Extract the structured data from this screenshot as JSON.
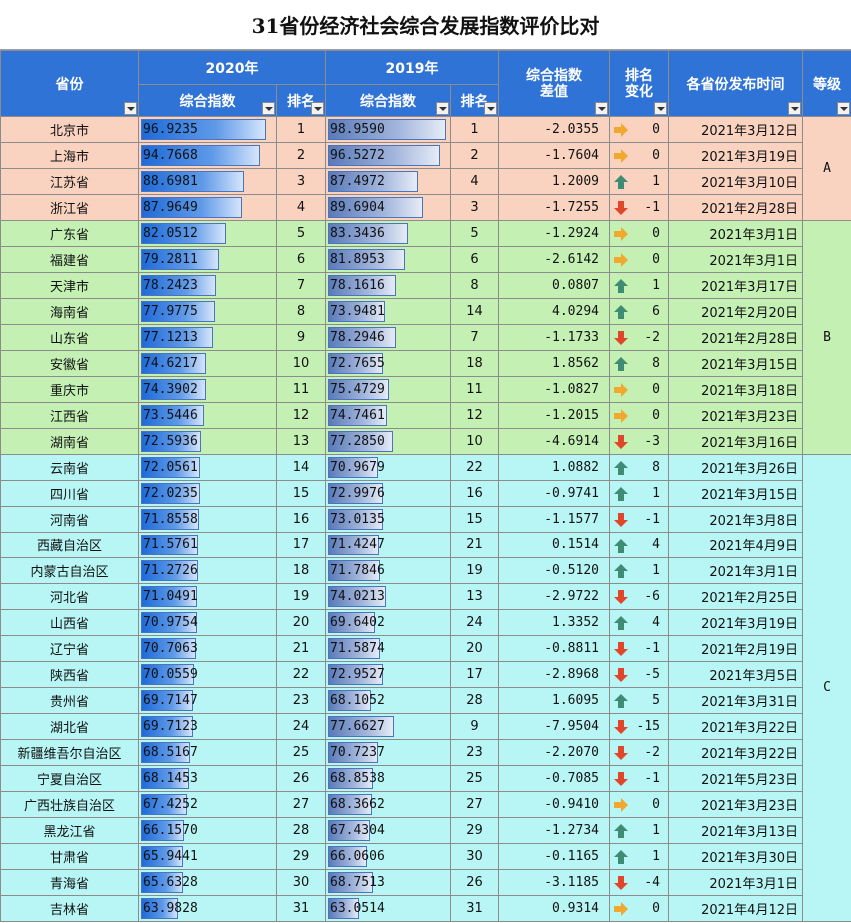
{
  "title": "31省份经济社会综合发展指数评价比对",
  "headers": {
    "province": "省份",
    "y2020": "2020年",
    "y2019": "2019年",
    "index": "综合指数",
    "rank": "排名",
    "diff_l1": "综合指数",
    "diff_l2": "差值",
    "change_l1": "排名",
    "change_l2": "变化",
    "release": "各省份发布时间",
    "grade": "等级"
  },
  "colors": {
    "header_bg": "#2f73d6",
    "grade_A": "#f9d2c0",
    "grade_B": "#c4f0b4",
    "grade_C": "#b8f6f6",
    "arrow_up": "#3f8c74",
    "arrow_down": "#e0462a",
    "arrow_flat": "#f0a92e"
  },
  "bar_scale": {
    "min": 50,
    "max": 100
  },
  "grades": [
    {
      "label": "A",
      "rows": 4
    },
    {
      "label": "B",
      "rows": 9
    },
    {
      "label": "C",
      "rows": 18
    }
  ],
  "rows": [
    {
      "province": "北京市",
      "idx2020": "96.9235",
      "rank2020": "1",
      "idx2019": "98.9590",
      "rank2019": "1",
      "diff": "-2.0355",
      "trend": "flat",
      "change": "0",
      "date": "2021年3月12日",
      "grade": "A"
    },
    {
      "province": "上海市",
      "idx2020": "94.7668",
      "rank2020": "2",
      "idx2019": "96.5272",
      "rank2019": "2",
      "diff": "-1.7604",
      "trend": "flat",
      "change": "0",
      "date": "2021年3月19日",
      "grade": "A"
    },
    {
      "province": "江苏省",
      "idx2020": "88.6981",
      "rank2020": "3",
      "idx2019": "87.4972",
      "rank2019": "4",
      "diff": "1.2009",
      "trend": "up",
      "change": "1",
      "date": "2021年3月10日",
      "grade": "A"
    },
    {
      "province": "浙江省",
      "idx2020": "87.9649",
      "rank2020": "4",
      "idx2019": "89.6904",
      "rank2019": "3",
      "diff": "-1.7255",
      "trend": "down",
      "change": "-1",
      "date": "2021年2月28日",
      "grade": "A"
    },
    {
      "province": "广东省",
      "idx2020": "82.0512",
      "rank2020": "5",
      "idx2019": "83.3436",
      "rank2019": "5",
      "diff": "-1.2924",
      "trend": "flat",
      "change": "0",
      "date": "2021年3月1日",
      "grade": "B"
    },
    {
      "province": "福建省",
      "idx2020": "79.2811",
      "rank2020": "6",
      "idx2019": "81.8953",
      "rank2019": "6",
      "diff": "-2.6142",
      "trend": "flat",
      "change": "0",
      "date": "2021年3月1日",
      "grade": "B"
    },
    {
      "province": "天津市",
      "idx2020": "78.2423",
      "rank2020": "7",
      "idx2019": "78.1616",
      "rank2019": "8",
      "diff": "0.0807",
      "trend": "up",
      "change": "1",
      "date": "2021年3月17日",
      "grade": "B"
    },
    {
      "province": "海南省",
      "idx2020": "77.9775",
      "rank2020": "8",
      "idx2019": "73.9481",
      "rank2019": "14",
      "diff": "4.0294",
      "trend": "up",
      "change": "6",
      "date": "2021年2月20日",
      "grade": "B"
    },
    {
      "province": "山东省",
      "idx2020": "77.1213",
      "rank2020": "9",
      "idx2019": "78.2946",
      "rank2019": "7",
      "diff": "-1.1733",
      "trend": "down",
      "change": "-2",
      "date": "2021年2月28日",
      "grade": "B"
    },
    {
      "province": "安徽省",
      "idx2020": "74.6217",
      "rank2020": "10",
      "idx2019": "72.7655",
      "rank2019": "18",
      "diff": "1.8562",
      "trend": "up",
      "change": "8",
      "date": "2021年3月15日",
      "grade": "B"
    },
    {
      "province": "重庆市",
      "idx2020": "74.3902",
      "rank2020": "11",
      "idx2019": "75.4729",
      "rank2019": "11",
      "diff": "-1.0827",
      "trend": "flat",
      "change": "0",
      "date": "2021年3月18日",
      "grade": "B"
    },
    {
      "province": "江西省",
      "idx2020": "73.5446",
      "rank2020": "12",
      "idx2019": "74.7461",
      "rank2019": "12",
      "diff": "-1.2015",
      "trend": "flat",
      "change": "0",
      "date": "2021年3月23日",
      "grade": "B"
    },
    {
      "province": "湖南省",
      "idx2020": "72.5936",
      "rank2020": "13",
      "idx2019": "77.2850",
      "rank2019": "10",
      "diff": "-4.6914",
      "trend": "down",
      "change": "-3",
      "date": "2021年3月16日",
      "grade": "B"
    },
    {
      "province": "云南省",
      "idx2020": "72.0561",
      "rank2020": "14",
      "idx2019": "70.9679",
      "rank2019": "22",
      "diff": "1.0882",
      "trend": "up",
      "change": "8",
      "date": "2021年3月26日",
      "grade": "C"
    },
    {
      "province": "四川省",
      "idx2020": "72.0235",
      "rank2020": "15",
      "idx2019": "72.9976",
      "rank2019": "16",
      "diff": "-0.9741",
      "trend": "up",
      "change": "1",
      "date": "2021年3月15日",
      "grade": "C"
    },
    {
      "province": "河南省",
      "idx2020": "71.8558",
      "rank2020": "16",
      "idx2019": "73.0135",
      "rank2019": "15",
      "diff": "-1.1577",
      "trend": "down",
      "change": "-1",
      "date": "2021年3月8日",
      "grade": "C"
    },
    {
      "province": "西藏自治区",
      "idx2020": "71.5761",
      "rank2020": "17",
      "idx2019": "71.4247",
      "rank2019": "21",
      "diff": "0.1514",
      "trend": "up",
      "change": "4",
      "date": "2021年4月9日",
      "grade": "C"
    },
    {
      "province": "内蒙古自治区",
      "idx2020": "71.2726",
      "rank2020": "18",
      "idx2019": "71.7846",
      "rank2019": "19",
      "diff": "-0.5120",
      "trend": "up",
      "change": "1",
      "date": "2021年3月1日",
      "grade": "C"
    },
    {
      "province": "河北省",
      "idx2020": "71.0491",
      "rank2020": "19",
      "idx2019": "74.0213",
      "rank2019": "13",
      "diff": "-2.9722",
      "trend": "down",
      "change": "-6",
      "date": "2021年2月25日",
      "grade": "C"
    },
    {
      "province": "山西省",
      "idx2020": "70.9754",
      "rank2020": "20",
      "idx2019": "69.6402",
      "rank2019": "24",
      "diff": "1.3352",
      "trend": "up",
      "change": "4",
      "date": "2021年3月19日",
      "grade": "C"
    },
    {
      "province": "辽宁省",
      "idx2020": "70.7063",
      "rank2020": "21",
      "idx2019": "71.5874",
      "rank2019": "20",
      "diff": "-0.8811",
      "trend": "down",
      "change": "-1",
      "date": "2021年2月19日",
      "grade": "C"
    },
    {
      "province": "陕西省",
      "idx2020": "70.0559",
      "rank2020": "22",
      "idx2019": "72.9527",
      "rank2019": "17",
      "diff": "-2.8968",
      "trend": "down",
      "change": "-5",
      "date": "2021年3月5日",
      "grade": "C"
    },
    {
      "province": "贵州省",
      "idx2020": "69.7147",
      "rank2020": "23",
      "idx2019": "68.1052",
      "rank2019": "28",
      "diff": "1.6095",
      "trend": "up",
      "change": "5",
      "date": "2021年3月31日",
      "grade": "C"
    },
    {
      "province": "湖北省",
      "idx2020": "69.7123",
      "rank2020": "24",
      "idx2019": "77.6627",
      "rank2019": "9",
      "diff": "-7.9504",
      "trend": "down",
      "change": "-15",
      "date": "2021年3月22日",
      "grade": "C"
    },
    {
      "province": "新疆维吾尔自治区",
      "idx2020": "68.5167",
      "rank2020": "25",
      "idx2019": "70.7237",
      "rank2019": "23",
      "diff": "-2.2070",
      "trend": "down",
      "change": "-2",
      "date": "2021年3月22日",
      "grade": "C"
    },
    {
      "province": "宁夏自治区",
      "idx2020": "68.1453",
      "rank2020": "26",
      "idx2019": "68.8538",
      "rank2019": "25",
      "diff": "-0.7085",
      "trend": "down",
      "change": "-1",
      "date": "2021年5月23日",
      "grade": "C"
    },
    {
      "province": "广西壮族自治区",
      "idx2020": "67.4252",
      "rank2020": "27",
      "idx2019": "68.3662",
      "rank2019": "27",
      "diff": "-0.9410",
      "trend": "flat",
      "change": "0",
      "date": "2021年3月23日",
      "grade": "C"
    },
    {
      "province": "黑龙江省",
      "idx2020": "66.1570",
      "rank2020": "28",
      "idx2019": "67.4304",
      "rank2019": "29",
      "diff": "-1.2734",
      "trend": "up",
      "change": "1",
      "date": "2021年3月13日",
      "grade": "C"
    },
    {
      "province": "甘肃省",
      "idx2020": "65.9441",
      "rank2020": "29",
      "idx2019": "66.0606",
      "rank2019": "30",
      "diff": "-0.1165",
      "trend": "up",
      "change": "1",
      "date": "2021年3月30日",
      "grade": "C"
    },
    {
      "province": "青海省",
      "idx2020": "65.6328",
      "rank2020": "30",
      "idx2019": "68.7513",
      "rank2019": "26",
      "diff": "-3.1185",
      "trend": "down",
      "change": "-4",
      "date": "2021年3月1日",
      "grade": "C"
    },
    {
      "province": "吉林省",
      "idx2020": "63.9828",
      "rank2020": "31",
      "idx2019": "63.0514",
      "rank2019": "31",
      "diff": "0.9314",
      "trend": "flat",
      "change": "0",
      "date": "2021年4月12日",
      "grade": "C"
    }
  ]
}
